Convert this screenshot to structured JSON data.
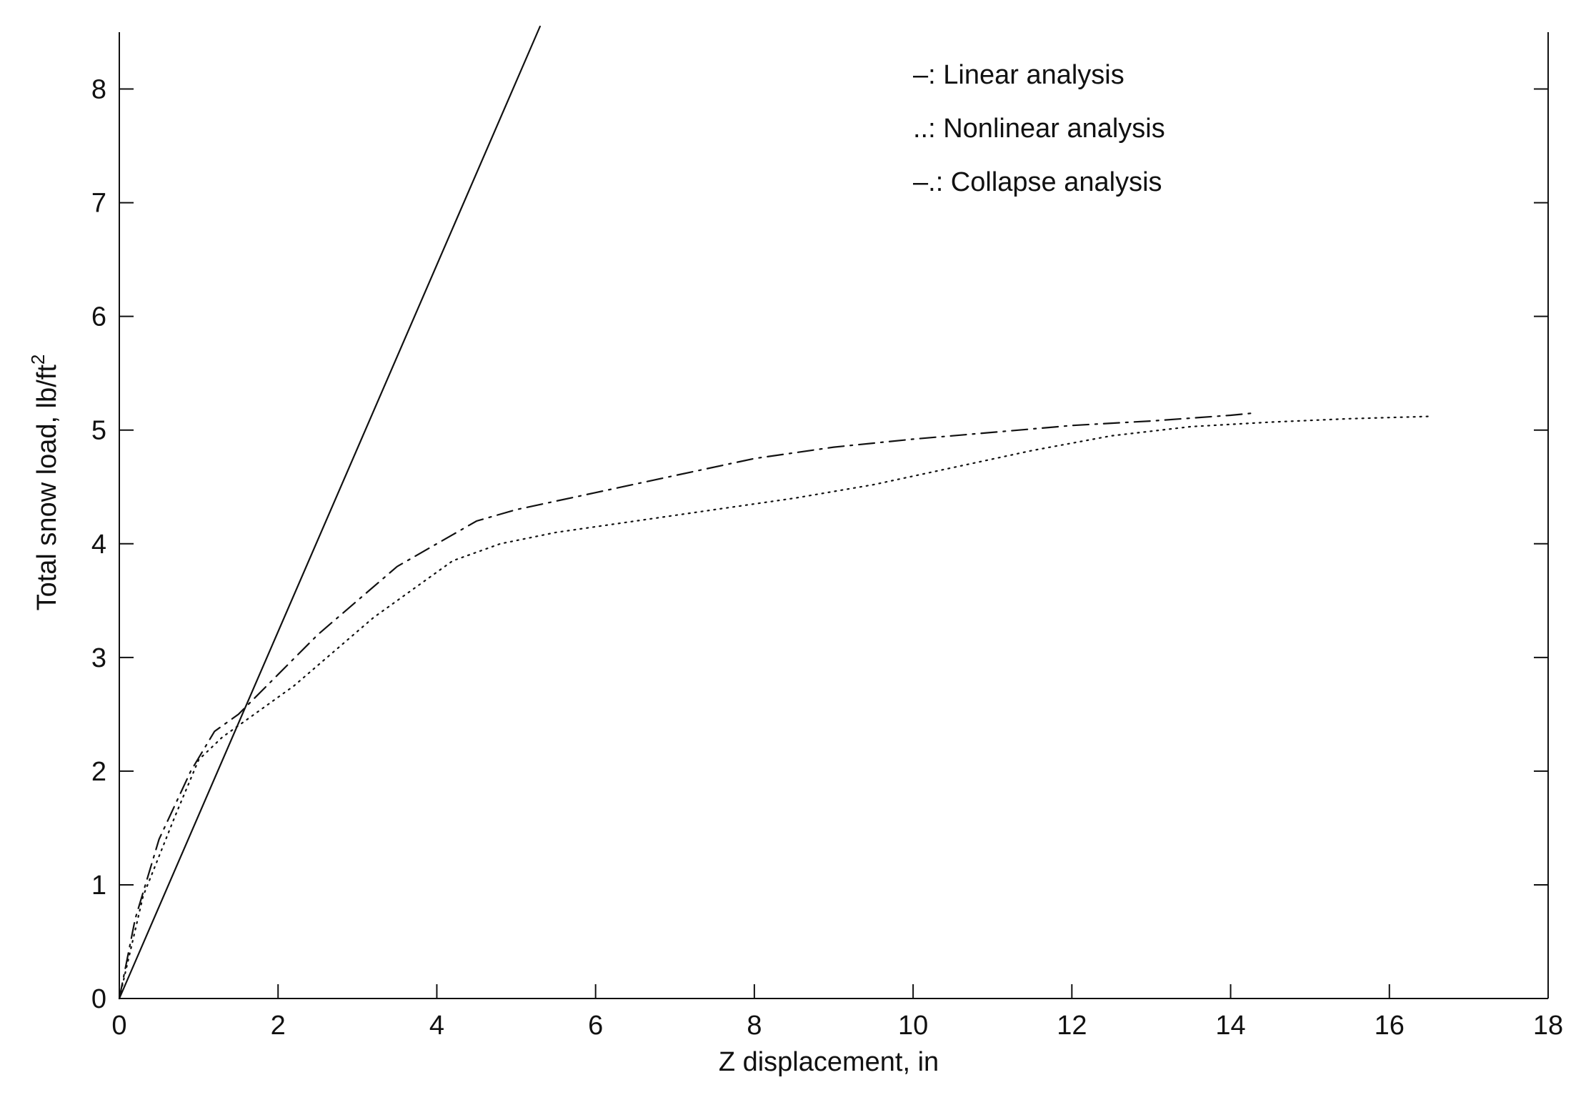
{
  "chart_data": {
    "type": "line",
    "xlabel": "Z displacement, in",
    "ylabel": "Total snow load, lb/ft",
    "ylabel_superscript": "2",
    "xlim": [
      0,
      18
    ],
    "ylim": [
      0,
      8.5
    ],
    "xticks": [
      0,
      2,
      4,
      6,
      8,
      10,
      12,
      14,
      16,
      18
    ],
    "yticks": [
      0,
      1,
      2,
      3,
      4,
      5,
      6,
      7,
      8
    ],
    "grid": false,
    "legend_placement": "top-center",
    "legend": [
      "–: Linear analysis",
      "..: Nonlinear analysis",
      "–.: Collapse analysis"
    ],
    "series": [
      {
        "style": "solid",
        "x": [
          0,
          5.3
        ],
        "y": [
          0,
          8.55
        ]
      },
      {
        "style": "dotted",
        "x": [
          0,
          0.3,
          0.7,
          1.0,
          1.3,
          1.7,
          2.2,
          2.7,
          3.2,
          3.7,
          4.2,
          4.8,
          5.5,
          6.5,
          7.5,
          8.5,
          9.5,
          10.5,
          11.5,
          12.5,
          13.5,
          14.5,
          15.5,
          16.5
        ],
        "y": [
          0,
          0.9,
          1.6,
          2.1,
          2.3,
          2.5,
          2.75,
          3.05,
          3.35,
          3.6,
          3.85,
          4.0,
          4.1,
          4.2,
          4.3,
          4.4,
          4.52,
          4.67,
          4.82,
          4.95,
          5.03,
          5.07,
          5.1,
          5.12
        ]
      },
      {
        "style": "dashdot",
        "x": [
          0,
          0.2,
          0.5,
          0.9,
          1.2,
          1.5,
          2.0,
          2.5,
          3.0,
          3.5,
          4.0,
          4.5,
          5.0,
          6.0,
          7.0,
          8.0,
          9.0,
          10.0,
          11.0,
          12.0,
          13.0,
          14.0,
          14.3
        ],
        "y": [
          0,
          0.7,
          1.4,
          2.0,
          2.35,
          2.5,
          2.85,
          3.2,
          3.5,
          3.8,
          4.0,
          4.2,
          4.3,
          4.45,
          4.6,
          4.75,
          4.85,
          4.92,
          4.98,
          5.04,
          5.08,
          5.13,
          5.15
        ]
      }
    ]
  }
}
